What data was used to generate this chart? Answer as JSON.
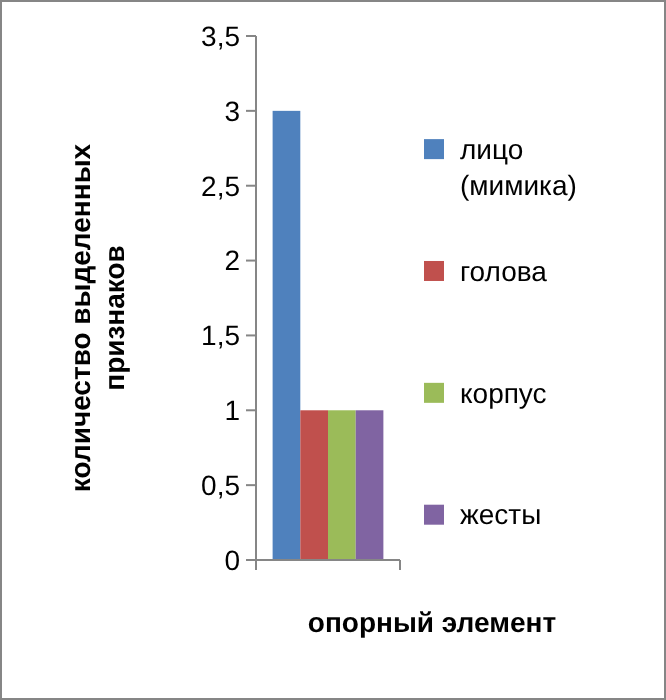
{
  "chart_data": {
    "type": "bar",
    "xlabel": "опорный элемент",
    "ylabel": "количество выделенных признаков",
    "categories": [
      null
    ],
    "series": [
      {
        "name": "лицо (мимика)",
        "color": "#4f81bd",
        "values": [
          3
        ]
      },
      {
        "name": "голова",
        "color": "#c0504d",
        "values": [
          1
        ]
      },
      {
        "name": "корпус",
        "color": "#9bbb59",
        "values": [
          1
        ]
      },
      {
        "name": "жесты",
        "color": "#8064a2",
        "values": [
          1
        ]
      }
    ],
    "ylim": [
      0,
      3.5
    ],
    "yticks": [
      0,
      {
        "value": 0.5,
        "label": "0,5"
      },
      1,
      {
        "value": 1.5,
        "label": "1,5"
      },
      2,
      {
        "value": 2.5,
        "label": "2,5"
      },
      3,
      {
        "value": 3.5,
        "label": "3,5"
      }
    ],
    "grid": false,
    "legend": "right"
  }
}
